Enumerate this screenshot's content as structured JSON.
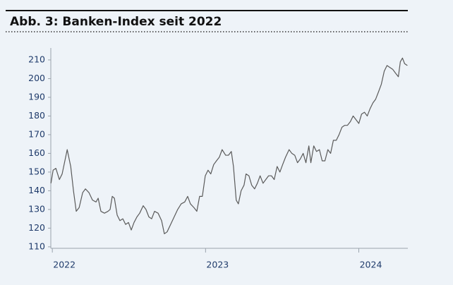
{
  "chart_data": {
    "type": "line",
    "title": "Abb. 3: Banken-Index seit 2022",
    "x": [
      2021.991,
      2022.005,
      2022.023,
      2022.046,
      2022.064,
      2022.097,
      2022.12,
      2022.138,
      2022.156,
      2022.175,
      2022.198,
      2022.216,
      2022.239,
      2022.262,
      2022.285,
      2022.299,
      2022.317,
      2022.34,
      2022.363,
      2022.377,
      2022.391,
      2022.405,
      2022.423,
      2022.441,
      2022.46,
      2022.478,
      2022.497,
      2022.515,
      2022.533,
      2022.552,
      2022.57,
      2022.593,
      2022.611,
      2022.63,
      2022.648,
      2022.667,
      2022.69,
      2022.713,
      2022.731,
      2022.749,
      2022.772,
      2022.795,
      2022.818,
      2022.841,
      2022.864,
      2022.883,
      2022.901,
      2022.924,
      2022.943,
      2022.961,
      2022.979,
      2022.998,
      2023.016,
      2023.034,
      2023.053,
      2023.071,
      2023.09,
      2023.108,
      2023.131,
      2023.149,
      2023.168,
      2023.182,
      2023.2,
      2023.214,
      2023.232,
      2023.251,
      2023.264,
      2023.283,
      2023.301,
      2023.32,
      2023.338,
      2023.356,
      2023.375,
      2023.393,
      2023.411,
      2023.43,
      2023.448,
      2023.467,
      2023.485,
      2023.503,
      2023.522,
      2023.545,
      2023.563,
      2023.582,
      2023.6,
      2023.618,
      2023.637,
      2023.655,
      2023.674,
      2023.687,
      2023.706,
      2023.724,
      2023.743,
      2023.761,
      2023.779,
      2023.798,
      2023.816,
      2023.834,
      2023.853,
      2023.871,
      2023.89,
      2023.908,
      2023.926,
      2023.945,
      2023.963,
      2023.982,
      2024.0,
      2024.018,
      2024.037,
      2024.055,
      2024.074,
      2024.092,
      2024.11,
      2024.129,
      2024.147,
      2024.166,
      2024.184,
      2024.202,
      2024.221,
      2024.239,
      2024.258,
      2024.271,
      2024.285,
      2024.299,
      2024.317
    ],
    "values": [
      144,
      151,
      152,
      146,
      149,
      162,
      153,
      140,
      129,
      131,
      139,
      141,
      139,
      135,
      134,
      136,
      129,
      128,
      129,
      130,
      137,
      136,
      127,
      124,
      125,
      122,
      123,
      119,
      123,
      126,
      128,
      132,
      130,
      126,
      125,
      129,
      128,
      124,
      117,
      118,
      122,
      126,
      130,
      133,
      134,
      137,
      133,
      131,
      129,
      137,
      137,
      148,
      151,
      149,
      154,
      156,
      158,
      162,
      159,
      159,
      161,
      153,
      135,
      133,
      140,
      143,
      149,
      148,
      143,
      141,
      144,
      148,
      144,
      146,
      148,
      148,
      146,
      153,
      150,
      154,
      158,
      162,
      160,
      159,
      155,
      157,
      160,
      155,
      164,
      155,
      164,
      161,
      162,
      156,
      156,
      162,
      160,
      167,
      167,
      170,
      174,
      175,
      175,
      177,
      180,
      178,
      176,
      181,
      182,
      180,
      184,
      187,
      189,
      193,
      197,
      204,
      207,
      206,
      205,
      203,
      201,
      209,
      211,
      208,
      207
    ],
    "color": "#5a5a5a",
    "xlim": [
      2021.99,
      2024.32
    ],
    "xticks": [
      2022,
      2023,
      2024
    ],
    "ylim": [
      109.2,
      216.4
    ],
    "yticks": [
      110,
      120,
      130,
      140,
      150,
      160,
      170,
      180,
      190,
      200,
      210
    ]
  }
}
